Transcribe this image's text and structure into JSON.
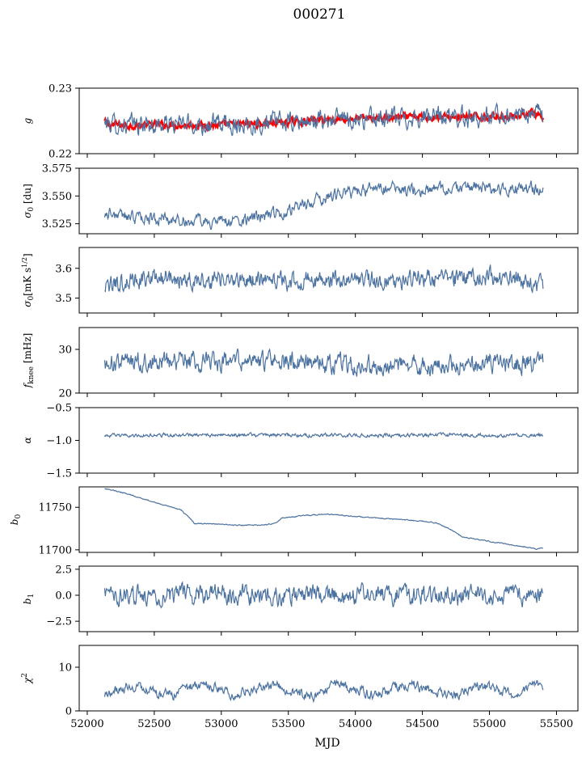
{
  "title": "000271",
  "xlabel": "MJD",
  "colors": {
    "series": "#4c72a0",
    "fit": "#ff0000",
    "axis": "#000000"
  },
  "chart_data": [
    {
      "type": "line",
      "panel": "g",
      "ylabel": "g",
      "ylim": [
        0.22,
        0.23
      ],
      "yticks": [
        0.22,
        0.23
      ],
      "xlim": [
        51940,
        55660
      ],
      "series": [
        {
          "color": "#ff0000",
          "noise": 0.0004,
          "x": [
            52130,
            52160,
            52200,
            52300,
            52500,
            52700,
            52900,
            53100,
            53300,
            53500,
            53700,
            53900,
            54100,
            54300,
            54500,
            54700,
            54900,
            55100,
            55250,
            55300,
            55350,
            55400
          ],
          "y": [
            0.2249,
            0.2244,
            0.2244,
            0.2243,
            0.2244,
            0.2244,
            0.2243,
            0.2244,
            0.2246,
            0.2248,
            0.2251,
            0.2253,
            0.2254,
            0.2255,
            0.2256,
            0.2256,
            0.2256,
            0.2257,
            0.2259,
            0.2264,
            0.2258,
            0.2252
          ]
        },
        {
          "color": "#4c72a0",
          "noise": 0.0012,
          "x": [
            52130,
            52400,
            52700,
            53000,
            53300,
            53600,
            53900,
            54200,
            54500,
            54800,
            55100,
            55300,
            55400
          ],
          "y": [
            0.2246,
            0.2244,
            0.2245,
            0.2245,
            0.2247,
            0.2248,
            0.2253,
            0.2253,
            0.2256,
            0.2256,
            0.2258,
            0.2262,
            0.2258
          ]
        }
      ]
    },
    {
      "type": "line",
      "panel": "sigma0-du",
      "ylabel": "σ0 [du]",
      "ylim": [
        3.516,
        3.575
      ],
      "yticks": [
        3.525,
        3.55,
        3.575
      ],
      "xlim": [
        51940,
        55660
      ],
      "series": [
        {
          "color": "#4c72a0",
          "noise": 0.0045,
          "x": [
            52130,
            52300,
            52600,
            52900,
            53200,
            53500,
            53700,
            53900,
            54100,
            54300,
            54500,
            54800,
            55100,
            55300,
            55400
          ],
          "y": [
            3.535,
            3.531,
            3.529,
            3.526,
            3.528,
            3.537,
            3.546,
            3.552,
            3.556,
            3.556,
            3.554,
            3.558,
            3.555,
            3.558,
            3.553
          ]
        }
      ]
    },
    {
      "type": "line",
      "panel": "sigma0-mk",
      "ylabel": "σ0[mK s^1/2]",
      "ylim": [
        3.45,
        3.67
      ],
      "yticks": [
        3.5,
        3.6
      ],
      "xlim": [
        51940,
        55660
      ],
      "series": [
        {
          "color": "#4c72a0",
          "noise": 0.025,
          "x": [
            52130,
            52300,
            52600,
            53000,
            53400,
            53800,
            54200,
            54600,
            55000,
            55200,
            55400
          ],
          "y": [
            3.53,
            3.56,
            3.57,
            3.56,
            3.56,
            3.56,
            3.56,
            3.56,
            3.57,
            3.57,
            3.54
          ]
        }
      ]
    },
    {
      "type": "line",
      "panel": "fknee",
      "ylabel": "fknee [mHz]",
      "ylim": [
        20,
        35
      ],
      "yticks": [
        20,
        30
      ],
      "xlim": [
        51940,
        55660
      ],
      "series": [
        {
          "color": "#4c72a0",
          "noise": 1.8,
          "x": [
            52130,
            52500,
            53000,
            53500,
            54000,
            54500,
            55000,
            55400
          ],
          "y": [
            26.5,
            27.5,
            27.0,
            27.0,
            26.5,
            26.5,
            26.8,
            27.0
          ]
        }
      ]
    },
    {
      "type": "line",
      "panel": "alpha",
      "ylabel": "α",
      "ylim": [
        -1.5,
        -0.5
      ],
      "yticks": [
        -1.5,
        -1.0,
        -0.5
      ],
      "xlim": [
        51940,
        55660
      ],
      "series": [
        {
          "color": "#4c72a0",
          "noise": 0.022,
          "x": [
            52130,
            52700,
            53300,
            53900,
            54500,
            55100,
            55400
          ],
          "y": [
            -0.93,
            -0.92,
            -0.92,
            -0.92,
            -0.92,
            -0.92,
            -0.92
          ]
        }
      ]
    },
    {
      "type": "line",
      "panel": "b0",
      "ylabel": "b0",
      "ylim": [
        11697,
        11774
      ],
      "yticks": [
        11700,
        11750
      ],
      "xlim": [
        51940,
        55660
      ],
      "series": [
        {
          "color": "#4c72a0",
          "noise": 0.5,
          "x": [
            52130,
            52300,
            52500,
            52700,
            52800,
            53000,
            53100,
            53300,
            53400,
            53450,
            53600,
            53800,
            54000,
            54200,
            54400,
            54600,
            54700,
            54800,
            55000,
            55200,
            55350,
            55400
          ],
          "y": [
            11772,
            11766,
            11756,
            11747,
            11731,
            11730,
            11729,
            11729,
            11731,
            11737,
            11740,
            11742,
            11739,
            11737,
            11735,
            11732,
            11725,
            11715,
            11710,
            11705,
            11701,
            11702
          ]
        }
      ]
    },
    {
      "type": "line",
      "panel": "b1",
      "ylabel": "b1",
      "ylim": [
        -3.5,
        2.8
      ],
      "yticks": [
        -2.5,
        0.0,
        2.5
      ],
      "xlim": [
        51940,
        55660
      ],
      "series": [
        {
          "color": "#4c72a0",
          "noise": 0.75,
          "x": [
            52130,
            52700,
            53300,
            53900,
            54500,
            55100,
            55400
          ],
          "y": [
            0.0,
            0.0,
            0.0,
            0.0,
            0.0,
            0.0,
            0.0
          ]
        }
      ]
    },
    {
      "type": "line",
      "panel": "chi2",
      "ylabel": "χ2",
      "ylim": [
        0,
        15
      ],
      "yticks": [
        0,
        10
      ],
      "xlim": [
        51940,
        55660
      ],
      "xticks": [
        52000,
        52500,
        53000,
        53500,
        54000,
        54500,
        55000,
        55500
      ],
      "series": [
        {
          "color": "#4c72a0",
          "noise": 0.9,
          "x": [
            52130,
            52200,
            52350,
            52500,
            52650,
            52800,
            52950,
            53100,
            53250,
            53400,
            53550,
            53700,
            53850,
            54000,
            54150,
            54300,
            54450,
            54600,
            54750,
            54900,
            55050,
            55200,
            55350,
            55400
          ],
          "y": [
            3.5,
            4.5,
            6.0,
            4.0,
            3.5,
            6.0,
            5.5,
            3.5,
            5.0,
            6.0,
            4.0,
            3.5,
            6.0,
            5.0,
            3.5,
            5.5,
            6.0,
            4.0,
            3.5,
            6.0,
            5.0,
            3.5,
            6.5,
            4.0
          ]
        }
      ]
    }
  ]
}
